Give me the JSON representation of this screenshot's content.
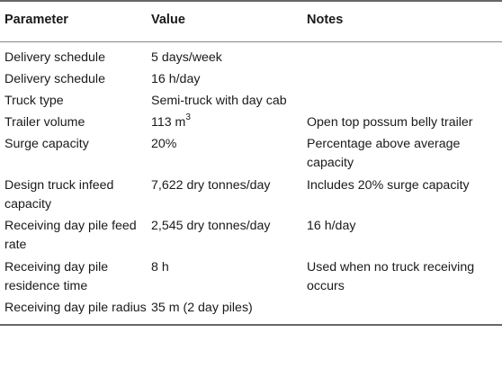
{
  "table": {
    "headers": [
      "Parameter",
      "Value",
      "Notes"
    ],
    "rows": [
      {
        "parameter": "Delivery schedule",
        "value": "5 days/week",
        "notes": ""
      },
      {
        "parameter": "Delivery schedule",
        "value": "16 h/day",
        "notes": ""
      },
      {
        "parameter": "Truck type",
        "value": "Semi-truck with day cab",
        "notes": ""
      },
      {
        "parameter": "Trailer volume",
        "value": "113 m",
        "value_sup": "3",
        "notes": "Open top possum belly trailer"
      },
      {
        "parameter": "Surge capacity",
        "value": "20%",
        "notes": "Percentage above average capacity"
      },
      {
        "parameter": "Design truck infeed capacity",
        "value": "7,622 dry tonnes/day",
        "notes": "Includes 20% surge capacity"
      },
      {
        "parameter": "Receiving day pile feed rate",
        "value": "2,545 dry tonnes/day",
        "notes": "16 h/day"
      },
      {
        "parameter": "Receiving day pile residence time",
        "value": "8 h",
        "notes": "Used when no truck receiving occurs"
      },
      {
        "parameter": "Receiving day pile radius",
        "value": "35 m (2 day piles)",
        "notes": ""
      }
    ]
  }
}
